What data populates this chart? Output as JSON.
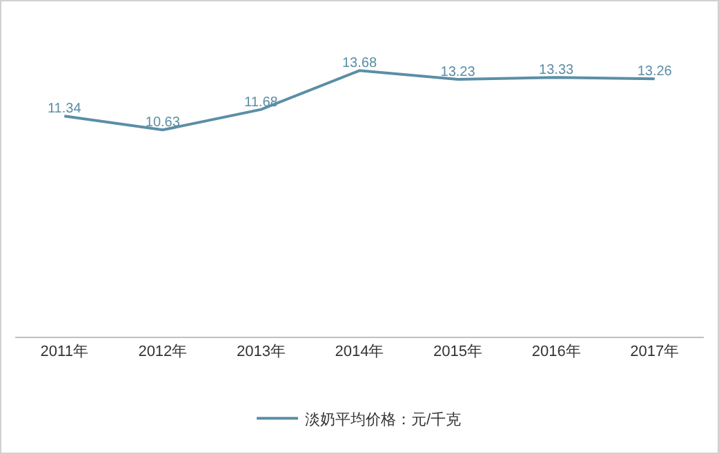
{
  "chart_data": {
    "type": "line",
    "categories": [
      "2011年",
      "2012年",
      "2013年",
      "2014年",
      "2015年",
      "2016年",
      "2017年"
    ],
    "series": [
      {
        "name": "淡奶平均价格：元/千克",
        "color": "#5b8ea6",
        "values": [
          11.34,
          10.63,
          11.68,
          13.68,
          13.23,
          13.33,
          13.26
        ]
      }
    ],
    "data_labels": true,
    "legend": "bottom",
    "grid": false,
    "marker": "none",
    "line_style": "solid",
    "tick_labels": "x"
  }
}
